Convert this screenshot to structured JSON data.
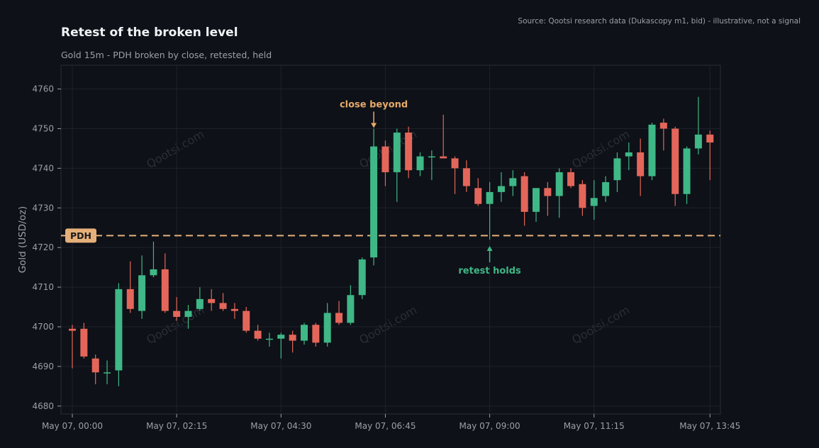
{
  "chart_data": {
    "type": "candlestick",
    "title": "Retest of the broken level",
    "subtitle": "Gold 15m - PDH broken by close, retested, held",
    "source": "Source: Qootsi research data (Dukascopy m1, bid) - illustrative, not a signal",
    "ylabel": "Gold (USD/oz)",
    "ylim": [
      4678,
      4766
    ],
    "yticks": [
      4680,
      4690,
      4700,
      4710,
      4720,
      4730,
      4740,
      4750,
      4760
    ],
    "xticks": [
      {
        "index": 0,
        "label": "May 07, 00:00"
      },
      {
        "index": 9,
        "label": "May 07, 02:15"
      },
      {
        "index": 18,
        "label": "May 07, 04:30"
      },
      {
        "index": 27,
        "label": "May 07, 06:45"
      },
      {
        "index": 36,
        "label": "May 07, 09:00"
      },
      {
        "index": 45,
        "label": "May 07, 11:15"
      },
      {
        "index": 55,
        "label": "May 07, 13:45"
      }
    ],
    "level": {
      "label": "PDH",
      "value": 4723
    },
    "annotations": [
      {
        "text": "close beyond",
        "index": 26,
        "value": 4750,
        "color": "#e6a96b",
        "position": "above"
      },
      {
        "text": "retest holds",
        "index": 36,
        "value": 4722,
        "color": "#3fb787",
        "position": "below"
      }
    ],
    "watermark": "Qootsi.com",
    "colors": {
      "up": "#3fb787",
      "down": "#e4665a",
      "level": "#e6b07a",
      "background": "#0e1117",
      "grid": "#1e222a"
    },
    "candles": [
      [
        4699.5,
        4700.5,
        4689.5,
        4699.0
      ],
      [
        4699.5,
        4701.0,
        4692.0,
        4692.5
      ],
      [
        4692.0,
        4693.0,
        4685.5,
        4688.5
      ],
      [
        4688.5,
        4691.5,
        4685.5,
        4688.5
      ],
      [
        4689.0,
        4711.0,
        4685.0,
        4709.5
      ],
      [
        4709.5,
        4716.5,
        4703.5,
        4704.5
      ],
      [
        4704.0,
        4718.0,
        4702.0,
        4713.0
      ],
      [
        4713.0,
        4721.5,
        4712.5,
        4714.5
      ],
      [
        4714.5,
        4718.5,
        4703.5,
        4704.0
      ],
      [
        4704.0,
        4707.5,
        4701.5,
        4702.5
      ],
      [
        4702.5,
        4705.5,
        4699.5,
        4704.0
      ],
      [
        4704.5,
        4710.0,
        4704.0,
        4707.0
      ],
      [
        4707.0,
        4709.5,
        4704.0,
        4706.0
      ],
      [
        4706.0,
        4708.5,
        4704.0,
        4704.5
      ],
      [
        4704.5,
        4706.0,
        4702.0,
        4704.0
      ],
      [
        4704.0,
        4705.0,
        4698.5,
        4699.0
      ],
      [
        4699.0,
        4700.5,
        4696.5,
        4697.0
      ],
      [
        4697.0,
        4698.5,
        4695.0,
        4697.0
      ],
      [
        4697.0,
        4698.5,
        4692.0,
        4698.0
      ],
      [
        4698.0,
        4699.0,
        4693.5,
        4696.5
      ],
      [
        4696.5,
        4701.0,
        4695.5,
        4700.5
      ],
      [
        4700.5,
        4701.0,
        4695.0,
        4696.0
      ],
      [
        4696.0,
        4706.0,
        4695.0,
        4703.5
      ],
      [
        4703.5,
        4706.5,
        4700.5,
        4701.0
      ],
      [
        4701.0,
        4710.5,
        4700.5,
        4708.0
      ],
      [
        4708.0,
        4717.5,
        4707.0,
        4717.0
      ],
      [
        4717.5,
        4750.0,
        4715.5,
        4745.5
      ],
      [
        4745.5,
        4747.0,
        4735.5,
        4739.0
      ],
      [
        4739.0,
        4750.0,
        4731.5,
        4749.0
      ],
      [
        4749.0,
        4750.5,
        4737.5,
        4739.5
      ],
      [
        4739.5,
        4744.0,
        4738.0,
        4743.0
      ],
      [
        4743.0,
        4744.5,
        4737.0,
        4743.0
      ],
      [
        4743.0,
        4753.5,
        4742.5,
        4742.5
      ],
      [
        4742.5,
        4743.0,
        4733.5,
        4740.0
      ],
      [
        4740.0,
        4742.0,
        4734.0,
        4735.5
      ],
      [
        4735.0,
        4737.5,
        4730.5,
        4731.0
      ],
      [
        4731.0,
        4736.5,
        4722.0,
        4734.0
      ],
      [
        4734.0,
        4739.0,
        4731.5,
        4735.5
      ],
      [
        4735.5,
        4739.5,
        4733.0,
        4737.5
      ],
      [
        4738.0,
        4739.0,
        4725.5,
        4729.0
      ],
      [
        4729.0,
        4735.0,
        4726.5,
        4735.0
      ],
      [
        4735.0,
        4736.5,
        4728.0,
        4733.0
      ],
      [
        4733.0,
        4740.0,
        4727.5,
        4739.0
      ],
      [
        4739.0,
        4740.0,
        4735.0,
        4735.5
      ],
      [
        4736.0,
        4737.0,
        4728.0,
        4730.0
      ],
      [
        4730.5,
        4737.0,
        4727.0,
        4732.5
      ],
      [
        4733.0,
        4738.0,
        4731.5,
        4736.5
      ],
      [
        4737.0,
        4744.0,
        4734.0,
        4742.5
      ],
      [
        4743.0,
        4746.5,
        4739.5,
        4744.0
      ],
      [
        4744.0,
        4747.5,
        4733.0,
        4738.0
      ],
      [
        4738.0,
        4751.5,
        4737.0,
        4751.0
      ],
      [
        4751.5,
        4752.5,
        4744.5,
        4750.0
      ],
      [
        4750.0,
        4750.5,
        4730.5,
        4733.5
      ],
      [
        4733.5,
        4745.5,
        4731.0,
        4745.0
      ],
      [
        4745.0,
        4758.0,
        4743.5,
        4748.5
      ],
      [
        4748.5,
        4749.5,
        4737.0,
        4746.5
      ]
    ]
  }
}
